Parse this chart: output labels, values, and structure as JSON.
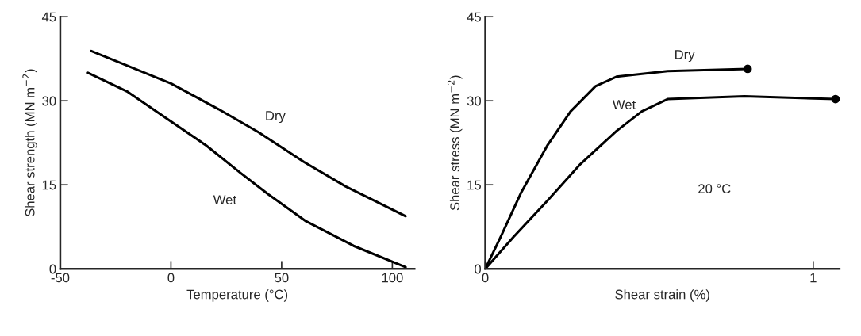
{
  "chart_data": [
    {
      "type": "line",
      "xlabel": "Temperature (°C)",
      "ylabel": "Shear strength (MN m$^{−2}$)",
      "xlim": [
        -50,
        110
      ],
      "ylim": [
        0,
        45
      ],
      "xticks": [
        -50,
        0,
        50,
        100
      ],
      "yticks": [
        0,
        15,
        30,
        45
      ],
      "grid": false,
      "legend": false,
      "marker": "none",
      "line_style": "solid",
      "series": [
        {
          "name": "Dry",
          "color": "#000000",
          "x": [
            -36,
            0,
            21.5,
            39.5,
            60,
            79,
            106
          ],
          "values": [
            38.9,
            33.1,
            28.5,
            24.4,
            19.1,
            14.7,
            9.4
          ]
        },
        {
          "name": "Wet",
          "color": "#000000",
          "x": [
            -37.5,
            -19.5,
            0,
            16,
            31.5,
            44,
            61,
            82.5,
            106
          ],
          "values": [
            35.0,
            31.6,
            26.3,
            22.0,
            17.1,
            13.3,
            8.5,
            4.1,
            0.3
          ]
        }
      ]
    },
    {
      "type": "line",
      "xlabel": "Shear strain (%)",
      "ylabel": "Shear stress (MN m$^{−2}$)",
      "xlim": [
        0,
        1.08
      ],
      "xticks": [
        0,
        1
      ],
      "ylim": [
        0,
        45
      ],
      "yticks": [
        0,
        15,
        30,
        45
      ],
      "grid": false,
      "legend": false,
      "marker": "none",
      "line_style": "solid",
      "annotations": [
        "20 °C"
      ],
      "series": [
        {
          "name": "Dry",
          "color": "#000000",
          "x": [
            0,
            0.047,
            0.11,
            0.19,
            0.26,
            0.336,
            0.4,
            0.556,
            0.8
          ],
          "values": [
            0,
            5.7,
            13.7,
            22.1,
            28.1,
            32.6,
            34.3,
            35.3,
            35.7
          ]
        },
        {
          "name": "Wet",
          "color": "#000000",
          "x": [
            0,
            0.086,
            0.19,
            0.29,
            0.4,
            0.477,
            0.556,
            0.79,
            1.068
          ],
          "values": [
            0,
            5.7,
            12.2,
            18.7,
            24.6,
            28.1,
            30.3,
            30.8,
            30.3
          ]
        },
        {
          "type": "scatter",
          "color": "#000000",
          "marker": "circle",
          "x": [
            0.8,
            1.068
          ],
          "values": [
            35.7,
            30.3
          ]
        }
      ]
    }
  ]
}
